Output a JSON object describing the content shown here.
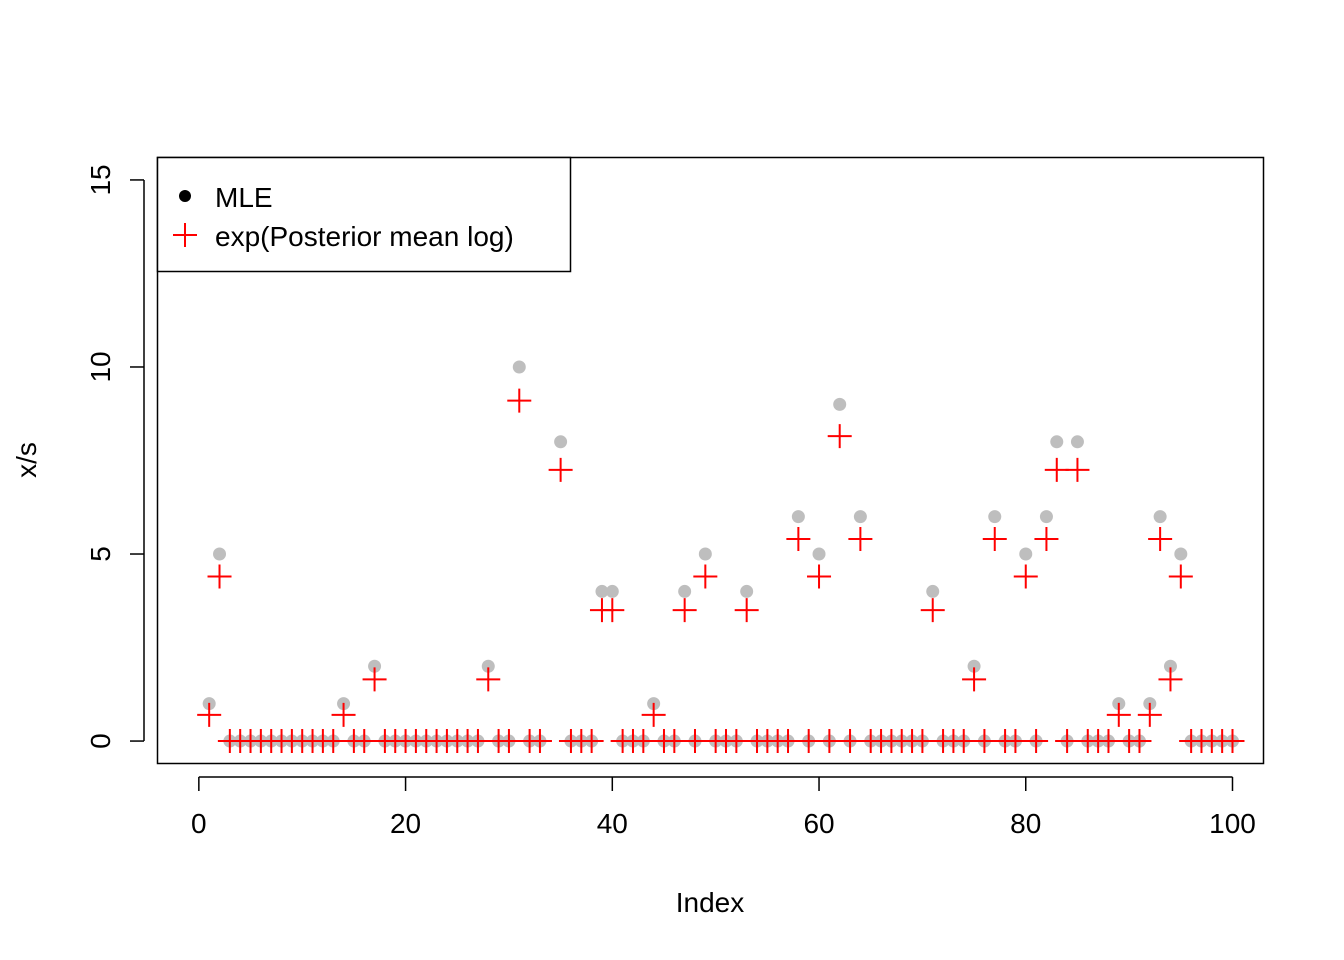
{
  "chart_data": {
    "type": "scatter",
    "title": "",
    "xlabel": "Index",
    "ylabel": "x/s",
    "xlim": [
      -4,
      103
    ],
    "ylim": [
      -0.6,
      15.6
    ],
    "x_ticks": [
      0,
      20,
      40,
      60,
      80,
      100
    ],
    "y_ticks": [
      0,
      5,
      10,
      15
    ],
    "grid": false,
    "legend": {
      "position": "top-left",
      "entries": [
        "MLE",
        "exp(Posterior mean log)"
      ]
    },
    "colors": {
      "mle": "#bebebe",
      "posterior": "#ff0000",
      "axis": "#000000"
    },
    "x": [
      1,
      2,
      3,
      4,
      5,
      6,
      7,
      8,
      9,
      10,
      11,
      12,
      13,
      14,
      15,
      16,
      17,
      18,
      19,
      20,
      21,
      22,
      23,
      24,
      25,
      26,
      27,
      28,
      29,
      30,
      31,
      32,
      33,
      34,
      35,
      36,
      37,
      38,
      39,
      40,
      41,
      42,
      43,
      44,
      45,
      46,
      47,
      48,
      49,
      50,
      51,
      52,
      53,
      54,
      55,
      56,
      57,
      58,
      59,
      60,
      61,
      62,
      63,
      64,
      65,
      66,
      67,
      68,
      69,
      70,
      71,
      72,
      73,
      74,
      75,
      76,
      77,
      78,
      79,
      80,
      81,
      82,
      83,
      84,
      85,
      86,
      87,
      88,
      89,
      90,
      91,
      92,
      93,
      94,
      95,
      96,
      97,
      98,
      99,
      100
    ],
    "series": [
      {
        "name": "MLE",
        "marker": "filled-circle",
        "values": [
          1,
          5,
          0,
          0,
          0,
          0,
          0,
          0,
          0,
          0,
          0,
          0,
          0,
          1,
          0,
          0,
          2,
          0,
          0,
          0,
          0,
          0,
          0,
          0,
          0,
          0,
          0,
          2,
          0,
          0,
          10,
          0,
          0,
          null,
          8,
          0,
          0,
          0,
          4,
          4,
          0,
          0,
          0,
          1,
          0,
          0,
          4,
          0,
          5,
          0,
          0,
          0,
          4,
          0,
          0,
          0,
          0,
          6,
          0,
          5,
          0,
          9,
          0,
          6,
          0,
          0,
          0,
          0,
          0,
          0,
          4,
          0,
          0,
          0,
          2,
          0,
          6,
          0,
          0,
          5,
          0,
          6,
          8,
          0,
          8,
          0,
          0,
          0,
          1,
          0,
          0,
          1,
          6,
          2,
          5,
          0,
          0,
          0,
          0,
          0
        ]
      },
      {
        "name": "exp(Posterior mean log)",
        "marker": "plus",
        "values": [
          0.7,
          4.4,
          0,
          0,
          0,
          0,
          0,
          0,
          0,
          0,
          0,
          0,
          0,
          0.7,
          0,
          0,
          1.65,
          0,
          0,
          0,
          0,
          0,
          0,
          0,
          0,
          0,
          0,
          1.65,
          0,
          0,
          9.1,
          0,
          0,
          null,
          7.25,
          0,
          0,
          0,
          3.5,
          3.5,
          0,
          0,
          0,
          0.7,
          0,
          0,
          3.5,
          0,
          4.4,
          0,
          0,
          0,
          3.5,
          0,
          0,
          0,
          0,
          5.4,
          0,
          4.4,
          0,
          8.15,
          0,
          5.4,
          0,
          0,
          0,
          0,
          0,
          0,
          3.5,
          0,
          0,
          0,
          1.65,
          0,
          5.4,
          0,
          0,
          4.4,
          0,
          5.4,
          7.25,
          0,
          7.25,
          0,
          0,
          0,
          0.7,
          0,
          0,
          0.7,
          5.4,
          1.65,
          4.4,
          0,
          0,
          0,
          0,
          0
        ]
      }
    ]
  }
}
